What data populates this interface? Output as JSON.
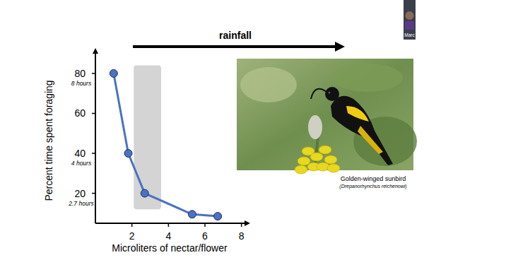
{
  "chart_data": {
    "type": "line",
    "x": [
      1,
      1.8,
      2.7,
      5.3,
      6.7
    ],
    "values": [
      80,
      40,
      20,
      9.5,
      8.5
    ],
    "color": "#4a72c4",
    "marker": "circle",
    "xlim": [
      0,
      8.4
    ],
    "ylim": [
      5,
      92
    ],
    "xticks": [
      2,
      4,
      6,
      8
    ],
    "yticks": [
      20,
      40,
      60,
      80
    ],
    "x_label": "Microliters of nectar/flower",
    "y_label": "Percent time spent foraging",
    "annotations": [
      {
        "y": 80,
        "text": "8 hours"
      },
      {
        "y": 40,
        "text": "4 hours"
      },
      {
        "y": 20,
        "text": "2.7 hours"
      }
    ],
    "shaded_region": {
      "x": [
        2.1,
        3.6
      ],
      "y": [
        12,
        84
      ]
    },
    "arrow_label": "rainfall"
  },
  "photo": {
    "caption": "Golden-winged sunbird",
    "species": "(Drepanorhynchus reichenowi)"
  },
  "thumbnail": {
    "label": "Marc"
  }
}
